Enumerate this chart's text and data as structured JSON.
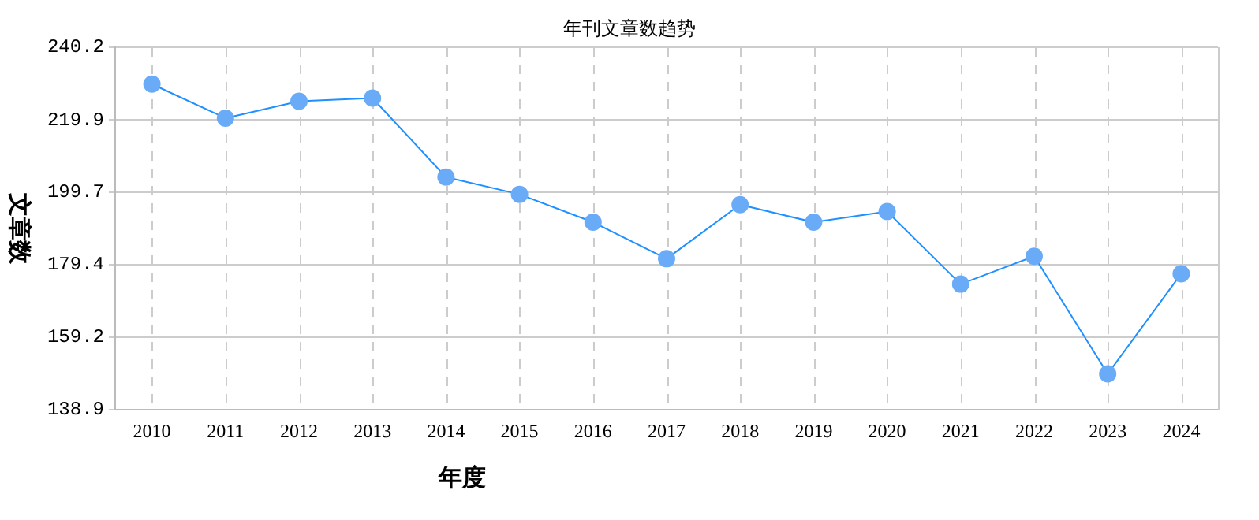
{
  "chart_data": {
    "type": "line",
    "title": "年刊文章数趋势",
    "xlabel": "年度",
    "ylabel": "文章数",
    "categories": [
      "2010",
      "2011",
      "2012",
      "2013",
      "2014",
      "2015",
      "2016",
      "2017",
      "2018",
      "2019",
      "2020",
      "2021",
      "2022",
      "2023",
      "2024"
    ],
    "series": [
      {
        "color": "#1e90ff",
        "values": [
          229.9,
          220.4,
          225.1,
          226.0,
          203.9,
          199.1,
          191.3,
          181.1,
          196.2,
          191.3,
          194.3,
          174.0,
          181.8,
          148.9,
          176.9
        ]
      }
    ],
    "ylim": [
      138.9,
      240.2
    ],
    "yticks": [
      138.9,
      159.2,
      179.4,
      199.7,
      219.9,
      240.2
    ],
    "grid": true,
    "legend": false,
    "marker": "circle",
    "line_style": "solid"
  }
}
